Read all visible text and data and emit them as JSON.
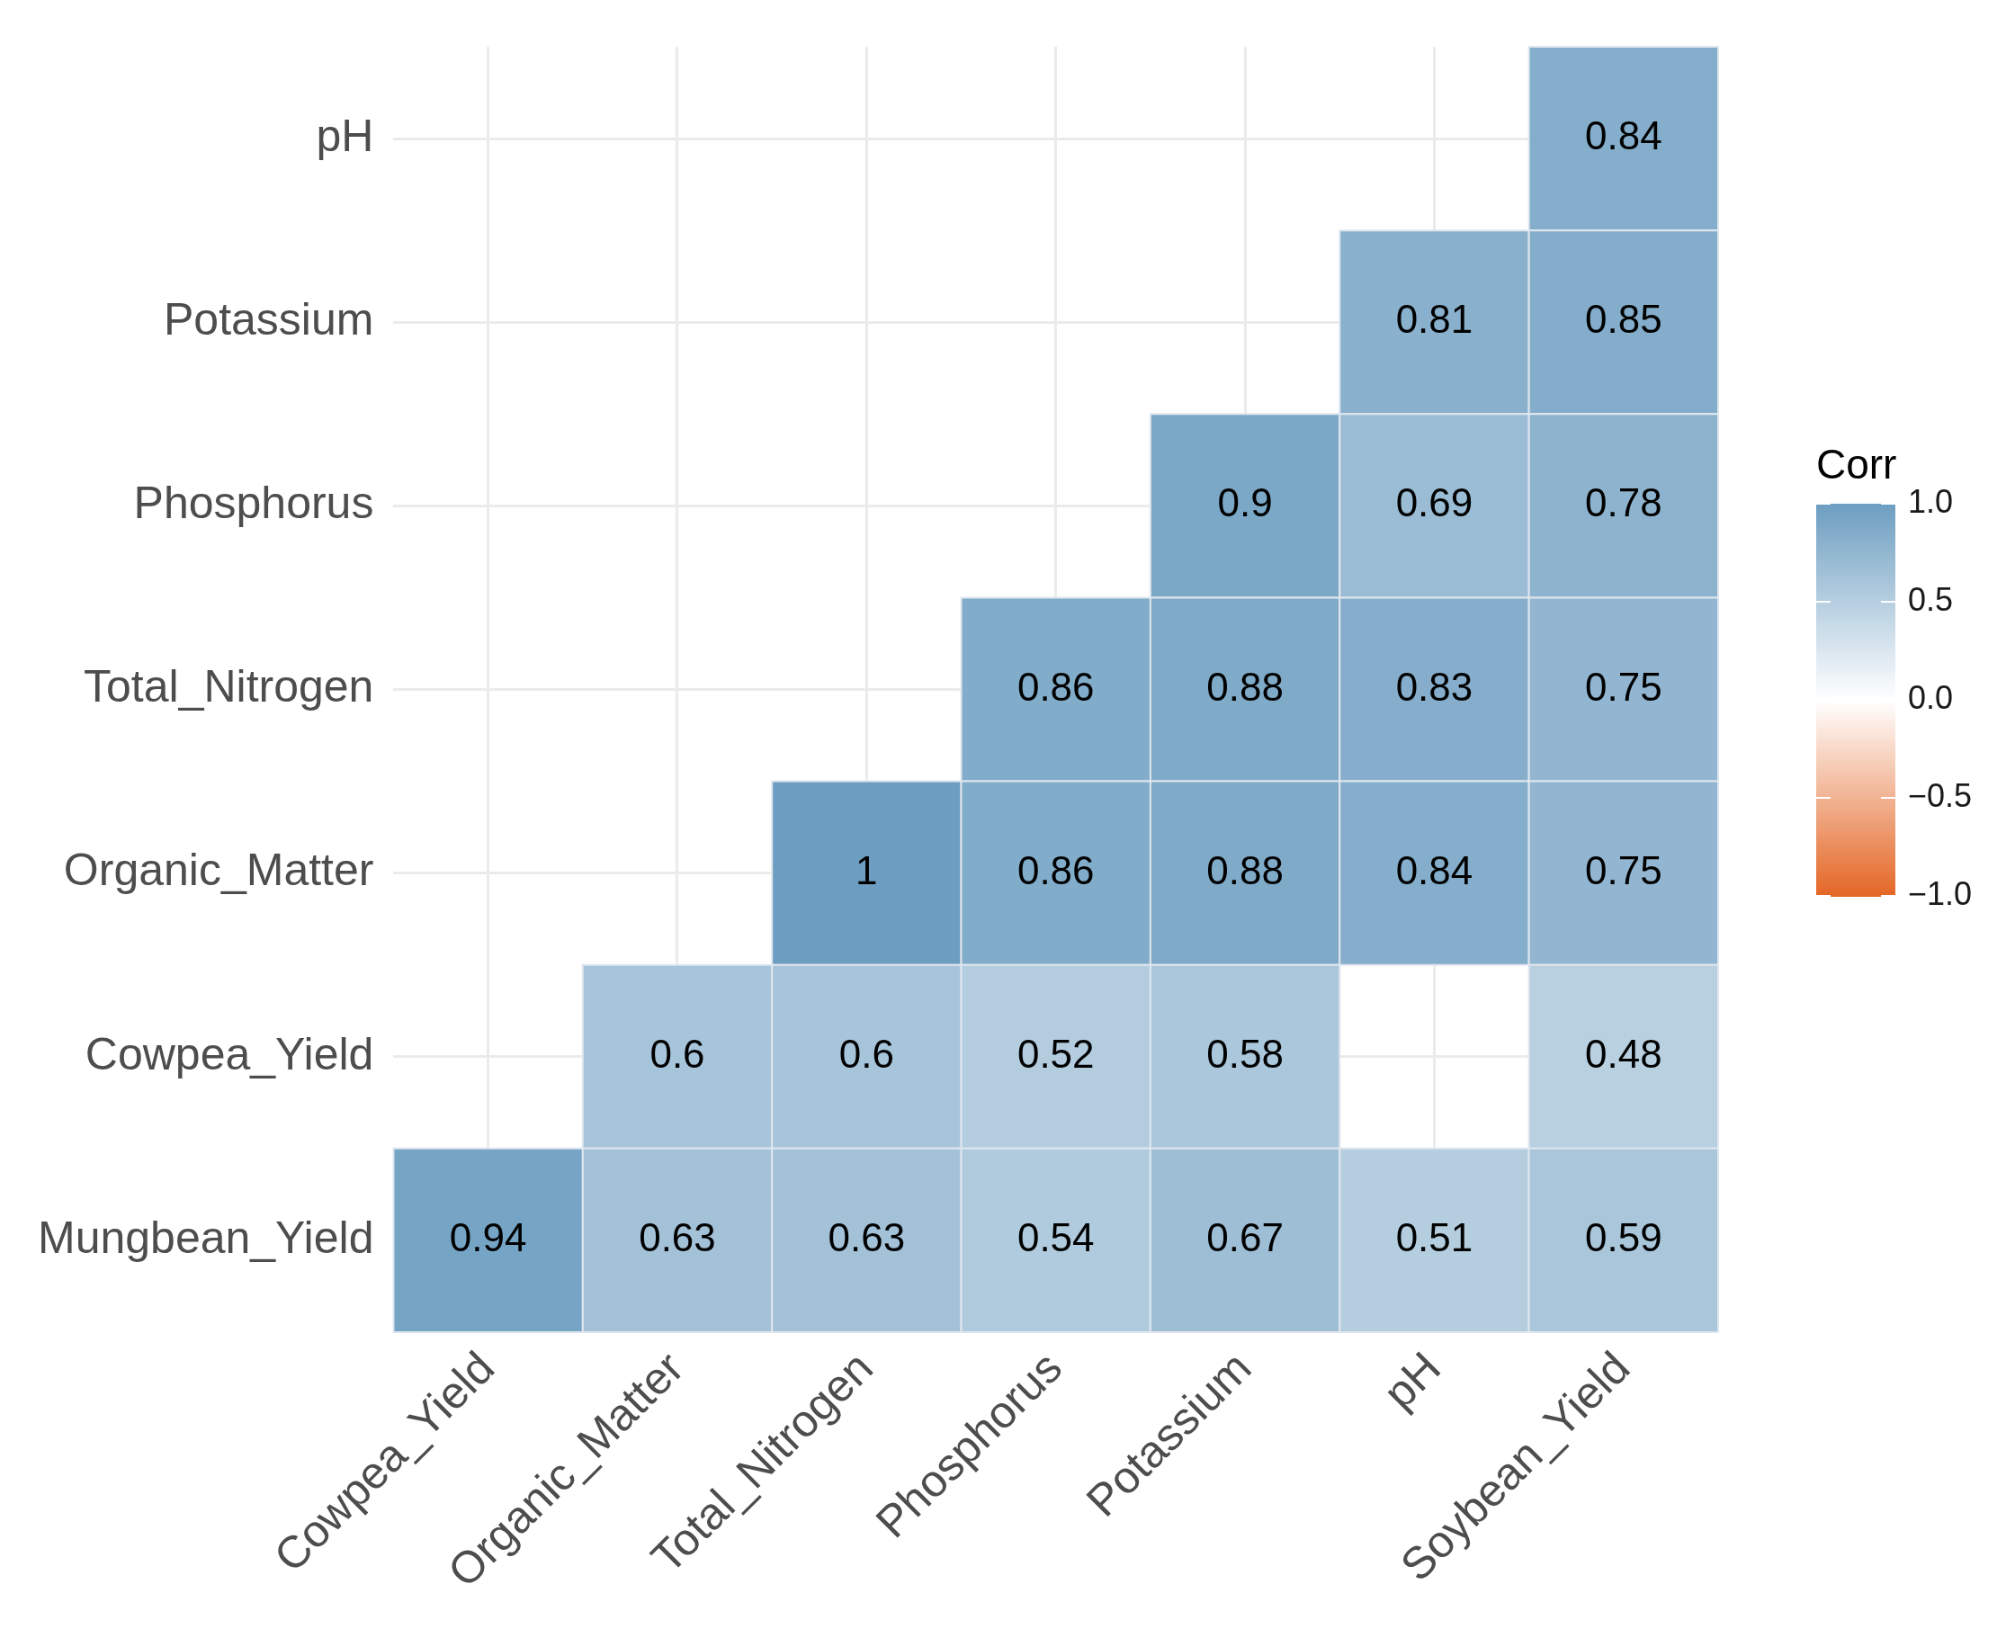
{
  "chart_data": {
    "type": "heatmap",
    "categories": [
      "Cowpea_Yield",
      "Organic_Matter",
      "Total_Nitrogen",
      "Phosphorus",
      "Potassium",
      "pH",
      "Soybean_Yield"
    ],
    "y_categories": [
      "pH",
      "Potassium",
      "Phosphorus",
      "Total_Nitrogen",
      "Organic_Matter",
      "Cowpea_Yield",
      "Mungbean_Yield"
    ],
    "cells": [
      [
        null,
        null,
        null,
        null,
        null,
        null,
        0.84
      ],
      [
        null,
        null,
        null,
        null,
        null,
        0.81,
        0.85
      ],
      [
        null,
        null,
        null,
        null,
        0.9,
        0.69,
        0.78
      ],
      [
        null,
        null,
        null,
        0.86,
        0.88,
        0.83,
        0.75
      ],
      [
        null,
        null,
        1,
        0.86,
        0.88,
        0.84,
        0.75
      ],
      [
        null,
        0.6,
        0.6,
        0.52,
        0.58,
        null,
        0.48
      ],
      [
        0.94,
        0.63,
        0.63,
        0.54,
        0.67,
        0.51,
        0.59
      ]
    ],
    "colors": [
      "#E46726",
      "#FFFFFF",
      "#6D9EC1"
    ],
    "clabel": "Corr",
    "clim": [
      -1,
      1
    ],
    "cticks": [
      {
        "value": 1,
        "label": "1.0"
      },
      {
        "value": 0.5,
        "label": "0.5"
      },
      {
        "value": 0,
        "label": "0.0"
      },
      {
        "value": -0.5,
        "label": "−0.5"
      },
      {
        "value": -1,
        "label": "−1.0"
      }
    ],
    "data_labels": true,
    "grid": true,
    "legend": false
  }
}
